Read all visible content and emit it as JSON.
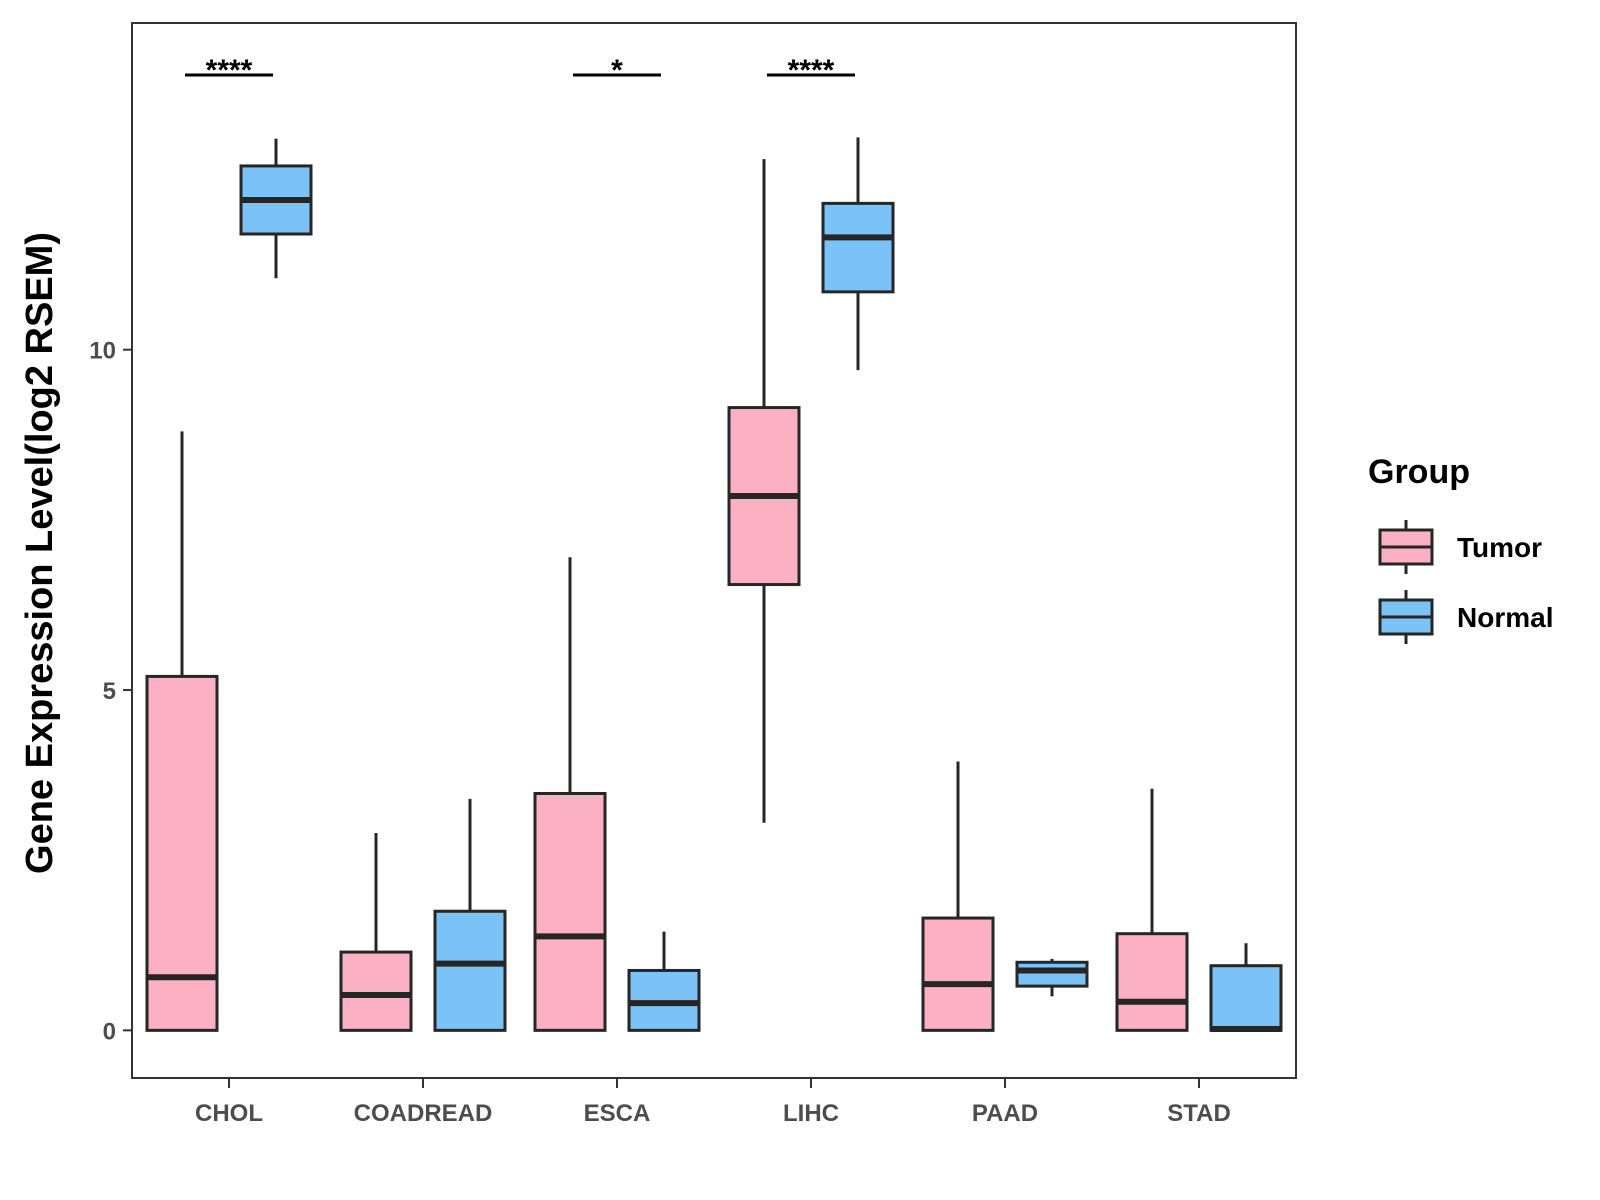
{
  "chart_data": {
    "type": "boxplot",
    "title": "",
    "xlabel": "",
    "ylabel": "Gene Expression Level(log2 RSEM)",
    "ylim": [
      -0.7,
      14.8
    ],
    "yticks": [
      0,
      5,
      10
    ],
    "ytick_labels": [
      "0",
      "5",
      "10"
    ],
    "grid": false,
    "legend_position": "right",
    "categories": [
      "CHOL",
      "COADREAD",
      "ESCA",
      "LIHC",
      "PAAD",
      "STAD"
    ],
    "series": [
      {
        "name": "Tumor",
        "color": "#FBB1C3",
        "boxes": [
          {
            "category": "CHOL",
            "whisker_low": 0,
            "q1": 0,
            "median": 0.78,
            "q3": 5.2,
            "whisker_high": 8.8
          },
          {
            "category": "COADREAD",
            "whisker_low": 0,
            "q1": 0,
            "median": 0.52,
            "q3": 1.15,
            "whisker_high": 2.9
          },
          {
            "category": "ESCA",
            "whisker_low": 0,
            "q1": 0,
            "median": 1.38,
            "q3": 3.48,
            "whisker_high": 6.95
          },
          {
            "category": "LIHC",
            "whisker_low": 3.05,
            "q1": 6.55,
            "median": 7.85,
            "q3": 9.15,
            "whisker_high": 12.8
          },
          {
            "category": "PAAD",
            "whisker_low": 0,
            "q1": 0,
            "median": 0.68,
            "q3": 1.65,
            "whisker_high": 3.95
          },
          {
            "category": "STAD",
            "whisker_low": 0,
            "q1": 0,
            "median": 0.42,
            "q3": 1.42,
            "whisker_high": 3.55
          }
        ]
      },
      {
        "name": "Normal",
        "color": "#7BC3F7",
        "boxes": [
          {
            "category": "CHOL",
            "whisker_low": 11.05,
            "q1": 11.7,
            "median": 12.2,
            "q3": 12.7,
            "whisker_high": 13.1
          },
          {
            "category": "COADREAD",
            "whisker_low": 0,
            "q1": 0,
            "median": 0.98,
            "q3": 1.75,
            "whisker_high": 3.4
          },
          {
            "category": "ESCA",
            "whisker_low": 0,
            "q1": 0,
            "median": 0.4,
            "q3": 0.88,
            "whisker_high": 1.45
          },
          {
            "category": "LIHC",
            "whisker_low": 9.7,
            "q1": 10.85,
            "median": 11.65,
            "q3": 12.15,
            "whisker_high": 13.12
          },
          {
            "category": "PAAD",
            "whisker_low": 0.5,
            "q1": 0.65,
            "median": 0.88,
            "q3": 1.0,
            "whisker_high": 1.05
          },
          {
            "category": "STAD",
            "whisker_low": 0,
            "q1": 0,
            "median": 0.02,
            "q3": 0.95,
            "whisker_high": 1.28
          }
        ]
      }
    ],
    "significance": [
      {
        "category": "CHOL",
        "label": "****"
      },
      {
        "category": "ESCA",
        "label": "*"
      },
      {
        "category": "LIHC",
        "label": "****"
      }
    ],
    "legend": {
      "title": "Group",
      "items": [
        "Tumor",
        "Normal"
      ]
    }
  }
}
